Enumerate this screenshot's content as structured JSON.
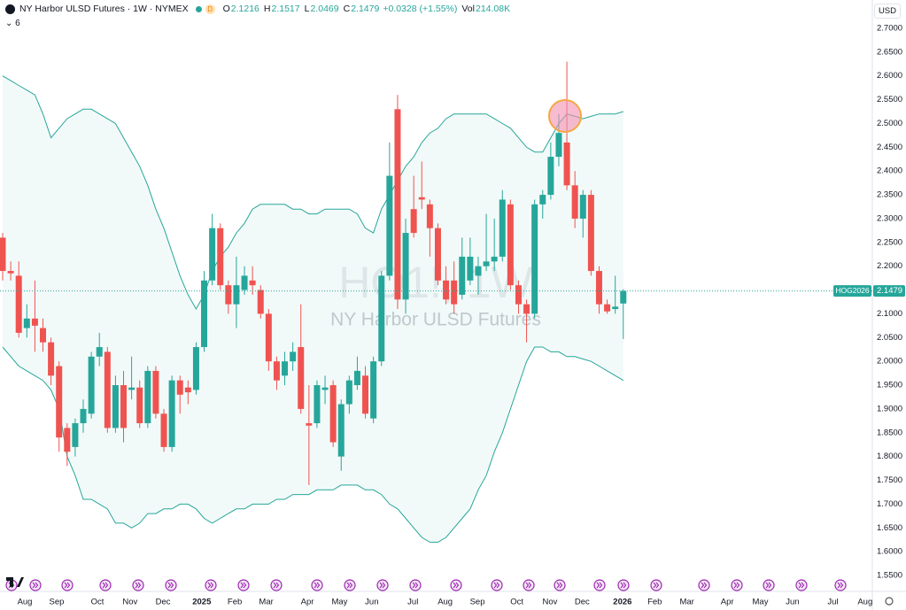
{
  "header": {
    "symbol": "NY Harbor ULSD Futures · 1W · NYMEX",
    "badge": "D",
    "ohlc": [
      {
        "label": "O",
        "value": "2.1216"
      },
      {
        "label": "H",
        "value": "2.1517"
      },
      {
        "label": "L",
        "value": "2.0469"
      },
      {
        "label": "C",
        "value": "2.1479"
      }
    ],
    "change": "+0.0328 (+1.55%)",
    "volume": {
      "label": "Vol",
      "value": "214.08K"
    },
    "indicators": "6",
    "currency": "USD"
  },
  "watermark": {
    "ticker": "HO1!, 1W",
    "name": "NY Harbor ULSD Futures"
  },
  "price_label": {
    "symbol": "HOG2026",
    "price": "2.1479"
  },
  "chart_data": {
    "type": "candlestick",
    "up_color": "#26a69a",
    "down_color": "#ef5350",
    "grid": false,
    "open": [
      2.26,
      2.19,
      2.18,
      2.07,
      2.09,
      2.07,
      2.04,
      1.99,
      1.86,
      1.82,
      1.87,
      1.89,
      2.01,
      2.02,
      1.86,
      1.95,
      1.94,
      1.945,
      1.87,
      1.98,
      1.89,
      1.82,
      1.96,
      1.945,
      1.94,
      2.03,
      2.17,
      2.28,
      2.16,
      2.12,
      2.15,
      2.17,
      2.15,
      2.1,
      2.0,
      1.97,
      2.0,
      2.03,
      1.87,
      1.87,
      1.94,
      1.95,
      1.8,
      1.91,
      1.95,
      1.97,
      1.88,
      2.0,
      2.18,
      2.53,
      2.13,
      2.32,
      2.345,
      2.33,
      2.28,
      2.17,
      2.17,
      2.14,
      2.17,
      2.18,
      2.2,
      2.21,
      2.22,
      2.33,
      2.16,
      2.12,
      2.1,
      2.33,
      2.35,
      2.43,
      2.46,
      2.37,
      2.3,
      2.35,
      2.19,
      2.12,
      2.11,
      2.1216
    ],
    "high": [
      2.27,
      2.21,
      2.21,
      2.12,
      2.17,
      2.09,
      2.05,
      2.0,
      1.87,
      1.88,
      1.92,
      2.02,
      2.06,
      2.03,
      1.97,
      1.98,
      2.01,
      1.96,
      1.99,
      1.99,
      1.9,
      1.97,
      1.97,
      1.96,
      2.04,
      2.19,
      2.31,
      2.29,
      2.17,
      2.22,
      2.2,
      2.2,
      2.16,
      2.11,
      2.01,
      2.02,
      2.04,
      2.12,
      1.95,
      1.96,
      1.97,
      1.96,
      1.92,
      1.97,
      2.01,
      1.99,
      2.01,
      2.19,
      2.46,
      2.56,
      2.3,
      2.39,
      2.42,
      2.34,
      2.29,
      2.2,
      2.21,
      2.26,
      2.26,
      2.22,
      2.31,
      2.3,
      2.36,
      2.34,
      2.17,
      2.13,
      2.34,
      2.36,
      2.46,
      2.52,
      2.63,
      2.4,
      2.36,
      2.36,
      2.2,
      2.13,
      2.18,
      2.1517
    ],
    "low": [
      2.17,
      2.17,
      2.05,
      2.05,
      2.02,
      2.02,
      1.95,
      1.81,
      1.78,
      1.8,
      1.85,
      1.88,
      1.99,
      1.85,
      1.85,
      1.83,
      1.92,
      1.86,
      1.86,
      1.88,
      1.81,
      1.81,
      1.89,
      1.91,
      1.93,
      2.02,
      2.16,
      2.15,
      2.1,
      2.07,
      2.14,
      2.14,
      2.09,
      1.98,
      1.94,
      1.95,
      1.98,
      1.89,
      1.74,
      1.86,
      1.91,
      1.82,
      1.77,
      1.89,
      1.94,
      1.88,
      1.87,
      1.99,
      2.17,
      2.11,
      2.1,
      2.26,
      2.32,
      2.22,
      2.16,
      2.12,
      2.1,
      2.13,
      2.16,
      2.14,
      2.19,
      2.19,
      2.21,
      2.15,
      2.1,
      2.04,
      2.09,
      2.3,
      2.34,
      2.41,
      2.36,
      2.28,
      2.26,
      2.18,
      2.1,
      2.1,
      2.1,
      2.0469
    ],
    "close": [
      2.19,
      2.185,
      2.06,
      2.09,
      2.075,
      2.04,
      1.97,
      1.84,
      1.81,
      1.87,
      1.9,
      2.01,
      2.03,
      1.86,
      1.95,
      1.86,
      1.945,
      1.87,
      1.98,
      1.89,
      1.82,
      1.96,
      1.93,
      1.935,
      2.03,
      2.17,
      2.28,
      2.16,
      2.12,
      2.16,
      2.18,
      2.16,
      2.1,
      2.0,
      1.96,
      2.0,
      2.02,
      1.9,
      1.865,
      1.95,
      1.945,
      1.83,
      1.91,
      1.96,
      1.98,
      1.89,
      2.0,
      2.18,
      2.39,
      2.13,
      2.27,
      2.27,
      2.34,
      2.28,
      2.17,
      2.13,
      2.12,
      2.22,
      2.22,
      2.2,
      2.21,
      2.22,
      2.34,
      2.16,
      2.12,
      2.1,
      2.33,
      2.35,
      2.43,
      2.48,
      2.37,
      2.3,
      2.35,
      2.19,
      2.12,
      2.105,
      2.115,
      2.1479
    ],
    "bands": {
      "color": "#26a69a",
      "upper": [
        2.6,
        2.59,
        2.58,
        2.57,
        2.56,
        2.52,
        2.47,
        2.49,
        2.51,
        2.52,
        2.53,
        2.53,
        2.52,
        2.51,
        2.5,
        2.47,
        2.44,
        2.41,
        2.37,
        2.32,
        2.28,
        2.23,
        2.18,
        2.14,
        2.11,
        2.14,
        2.19,
        2.22,
        2.24,
        2.27,
        2.29,
        2.32,
        2.33,
        2.33,
        2.33,
        2.33,
        2.32,
        2.32,
        2.31,
        2.31,
        2.32,
        2.32,
        2.32,
        2.32,
        2.31,
        2.28,
        2.27,
        2.32,
        2.35,
        2.38,
        2.41,
        2.43,
        2.46,
        2.48,
        2.49,
        2.51,
        2.52,
        2.52,
        2.52,
        2.52,
        2.52,
        2.51,
        2.5,
        2.49,
        2.47,
        2.45,
        2.44,
        2.44,
        2.47,
        2.5,
        2.52,
        2.515,
        2.51,
        2.515,
        2.52,
        2.52,
        2.52,
        2.525
      ],
      "lower": [
        2.03,
        2.01,
        1.99,
        1.98,
        1.97,
        1.96,
        1.94,
        1.9,
        1.8,
        1.76,
        1.71,
        1.71,
        1.7,
        1.69,
        1.66,
        1.66,
        1.65,
        1.66,
        1.68,
        1.68,
        1.69,
        1.69,
        1.7,
        1.7,
        1.69,
        1.67,
        1.66,
        1.67,
        1.68,
        1.69,
        1.69,
        1.7,
        1.7,
        1.7,
        1.71,
        1.71,
        1.72,
        1.72,
        1.72,
        1.73,
        1.73,
        1.73,
        1.74,
        1.74,
        1.74,
        1.73,
        1.73,
        1.72,
        1.7,
        1.69,
        1.67,
        1.65,
        1.63,
        1.62,
        1.62,
        1.63,
        1.65,
        1.67,
        1.69,
        1.73,
        1.76,
        1.81,
        1.85,
        1.9,
        1.95,
        2.0,
        2.03,
        2.03,
        2.02,
        2.02,
        2.01,
        2.01,
        2.005,
        2.0,
        1.99,
        1.98,
        1.97,
        1.96
      ]
    },
    "xlim": [
      -0.33,
      107.9
    ],
    "xticks": [
      {
        "value": 2.75,
        "label": "Aug"
      },
      {
        "value": 6.7,
        "label": "Sep"
      },
      {
        "value": 11.76,
        "label": "Oct"
      },
      {
        "value": 15.8,
        "label": "Nov"
      },
      {
        "value": 19.9,
        "label": "Dec"
      },
      {
        "value": 24.7,
        "label": "2025"
      },
      {
        "value": 28.8,
        "label": "Feb"
      },
      {
        "value": 32.7,
        "label": "Mar"
      },
      {
        "value": 37.8,
        "label": "Apr"
      },
      {
        "value": 41.8,
        "label": "May"
      },
      {
        "value": 45.8,
        "label": "Jun"
      },
      {
        "value": 50.9,
        "label": "Jul"
      },
      {
        "value": 54.9,
        "label": "Aug"
      },
      {
        "value": 58.9,
        "label": "Sep"
      },
      {
        "value": 63.8,
        "label": "Oct"
      },
      {
        "value": 67.9,
        "label": "Nov"
      },
      {
        "value": 71.9,
        "label": "Dec"
      },
      {
        "value": 76.9,
        "label": "2026"
      },
      {
        "value": 80.9,
        "label": "Feb"
      },
      {
        "value": 84.9,
        "label": "Mar"
      },
      {
        "value": 89.9,
        "label": "Apr"
      },
      {
        "value": 94.0,
        "label": "May"
      },
      {
        "value": 98.0,
        "label": "Jun"
      },
      {
        "value": 103.0,
        "label": "Jul"
      },
      {
        "value": 107.0,
        "label": "Aug"
      }
    ],
    "ylim": [
      1.5165,
      2.7595
    ],
    "yticks": [
      {
        "value": 1.55,
        "label": "1.5500"
      },
      {
        "value": 1.6,
        "label": "1.6000"
      },
      {
        "value": 1.65,
        "label": "1.6500"
      },
      {
        "value": 1.7,
        "label": "1.7000"
      },
      {
        "value": 1.75,
        "label": "1.7500"
      },
      {
        "value": 1.8,
        "label": "1.8000"
      },
      {
        "value": 1.85,
        "label": "1.8500"
      },
      {
        "value": 1.9,
        "label": "1.9000"
      },
      {
        "value": 1.95,
        "label": "1.9500"
      },
      {
        "value": 2.0,
        "label": "2.0000"
      },
      {
        "value": 2.05,
        "label": "2.0500"
      },
      {
        "value": 2.1,
        "label": "2.1000"
      },
      {
        "value": 2.15,
        "label": "2.1500"
      },
      {
        "value": 2.2,
        "label": "2.2000"
      },
      {
        "value": 2.25,
        "label": "2.2500"
      },
      {
        "value": 2.3,
        "label": "2.3000"
      },
      {
        "value": 2.35,
        "label": "2.3500"
      },
      {
        "value": 2.4,
        "label": "2.4000"
      },
      {
        "value": 2.45,
        "label": "2.4500"
      },
      {
        "value": 2.5,
        "label": "2.5000"
      },
      {
        "value": 2.55,
        "label": "2.5500"
      },
      {
        "value": 2.6,
        "label": "2.6000"
      },
      {
        "value": 2.65,
        "label": "2.6500"
      },
      {
        "value": 2.7,
        "label": "2.7000"
      }
    ]
  }
}
